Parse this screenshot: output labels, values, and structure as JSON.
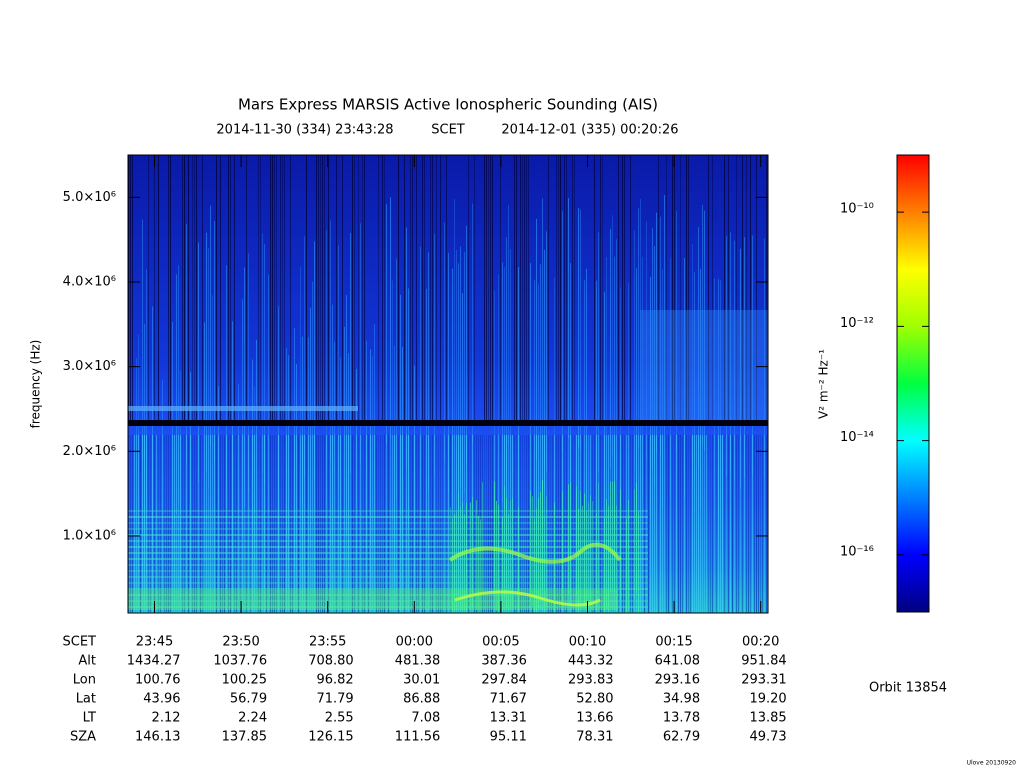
{
  "chart_data": {
    "type": "spectrogram",
    "title": "Mars Express MARSIS Active Ionospheric Sounding (AIS)",
    "start_time": "2014-11-30 (334) 23:43:28",
    "time_system": "SCET",
    "end_time": "2014-12-01 (335) 00:20:26",
    "ylabel": "frequency (Hz)",
    "ylim": [
      90000,
      5500000
    ],
    "yticks": [
      {
        "value": 1000000,
        "label": "1.0×10⁶"
      },
      {
        "value": 2000000,
        "label": "2.0×10⁶"
      },
      {
        "value": 3000000,
        "label": "3.0×10⁶"
      },
      {
        "value": 4000000,
        "label": "4.0×10⁶"
      },
      {
        "value": 5000000,
        "label": "5.0×10⁶"
      }
    ],
    "colorbar": {
      "label": "V² m⁻² Hz⁻¹",
      "scale": "log",
      "zlim": [
        1e-17,
        1e-09
      ],
      "zticks": [
        {
          "value": 1e-10,
          "label": "10⁻¹⁰"
        },
        {
          "value": 1e-12,
          "label": "10⁻¹²"
        },
        {
          "value": 1e-14,
          "label": "10⁻¹⁴"
        },
        {
          "value": 1e-16,
          "label": "10⁻¹⁶"
        }
      ],
      "colors": [
        "#000080",
        "#0000ff",
        "#0080ff",
        "#00ffff",
        "#00ff40",
        "#a0ff00",
        "#ffff00",
        "#ff8000",
        "#ff0000"
      ]
    },
    "ephemeris": {
      "time_label": "SCET",
      "times": [
        "23:45",
        "23:50",
        "23:55",
        "00:00",
        "00:05",
        "00:10",
        "00:15",
        "00:20"
      ],
      "rows": [
        {
          "name": "Alt",
          "values": [
            "1434.27",
            "1037.76",
            "708.80",
            "481.38",
            "387.36",
            "443.32",
            "641.08",
            "951.84"
          ]
        },
        {
          "name": "Lon",
          "values": [
            "100.76",
            "100.25",
            "96.82",
            "30.01",
            "297.84",
            "293.83",
            "293.16",
            "293.31"
          ]
        },
        {
          "name": "Lat",
          "values": [
            "43.96",
            "56.79",
            "71.79",
            "86.88",
            "71.67",
            "52.80",
            "34.98",
            "19.20"
          ]
        },
        {
          "name": "LT",
          "values": [
            "2.12",
            "2.24",
            "2.55",
            "7.08",
            "13.31",
            "13.66",
            "13.78",
            "13.85"
          ]
        },
        {
          "name": "SZA",
          "values": [
            "146.13",
            "137.85",
            "126.15",
            "111.56",
            "95.11",
            "78.31",
            "62.79",
            "49.73"
          ]
        }
      ]
    },
    "orbit": "Orbit 13854",
    "footer": "Ulove 20130920"
  }
}
